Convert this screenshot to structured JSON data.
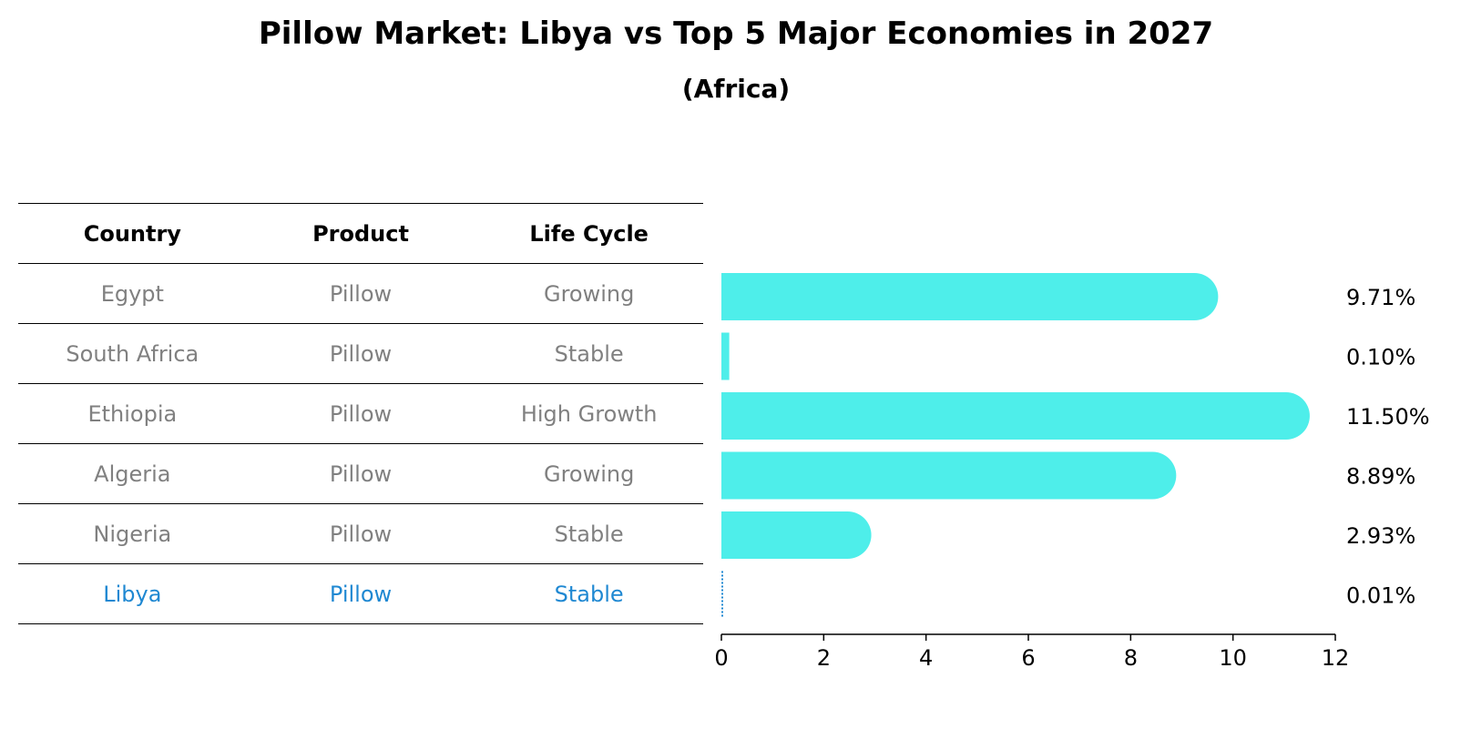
{
  "title": "Pillow Market: Libya vs Top 5 Major Economies in 2027",
  "subtitle": "(Africa)",
  "colors": {
    "bar": "#4eeeea",
    "highlight_bar": "#1f88d2",
    "highlight_text": "#1f88d2",
    "muted_text": "#808080"
  },
  "table": {
    "headers": [
      "Country",
      "Product",
      "Life Cycle"
    ],
    "rows": [
      [
        "Egypt",
        "Pillow",
        "Growing"
      ],
      [
        "South Africa",
        "Pillow",
        "Stable"
      ],
      [
        "Ethiopia",
        "Pillow",
        "High Growth"
      ],
      [
        "Algeria",
        "Pillow",
        "Growing"
      ],
      [
        "Nigeria",
        "Pillow",
        "Stable"
      ],
      [
        "Libya",
        "Pillow",
        "Stable"
      ]
    ],
    "highlight_row": 5
  },
  "chart_data": {
    "type": "bar",
    "orientation": "horizontal",
    "categories": [
      "Egypt",
      "South Africa",
      "Ethiopia",
      "Algeria",
      "Nigeria",
      "Libya"
    ],
    "values": [
      9.71,
      0.1,
      11.5,
      8.89,
      2.93,
      0.01
    ],
    "value_labels": [
      "9.71%",
      "0.10%",
      "11.50%",
      "8.89%",
      "2.93%",
      "0.01%"
    ],
    "xlim": [
      0,
      12
    ],
    "xticks": [
      0,
      2,
      4,
      6,
      8,
      10,
      12
    ],
    "grid": false,
    "highlight_index": 5
  }
}
